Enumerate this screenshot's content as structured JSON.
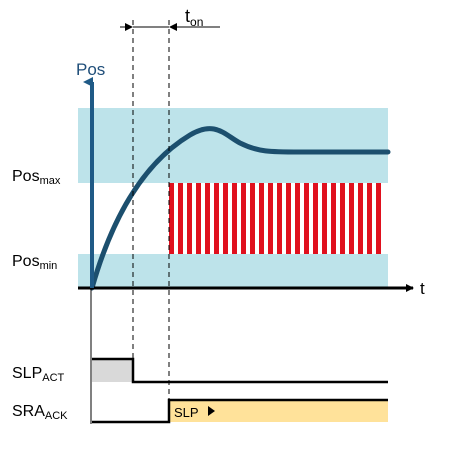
{
  "diagram": {
    "axis_labels": {
      "y": "Pos",
      "x": "t"
    },
    "ton": {
      "main": "t",
      "sub": "on"
    },
    "levels": {
      "max": {
        "main": "Pos",
        "sub": "max"
      },
      "min": {
        "main": "Pos",
        "sub": "min"
      }
    },
    "signals": {
      "slp_act": {
        "main": "SLP",
        "sub": "ACT"
      },
      "sra_ack": {
        "main": "SRA",
        "sub": "ACK",
        "state_label": "SLP"
      }
    }
  },
  "colors": {
    "tolerance_band": "#bde3ea",
    "position_curve": "#1c4f6e",
    "axis": "#000000",
    "y_axis": "#1f5a86",
    "stripes": "#e0101e",
    "slp_act_fill": "#d9d9d9",
    "sra_ack_fill": "#ffe29a"
  }
}
